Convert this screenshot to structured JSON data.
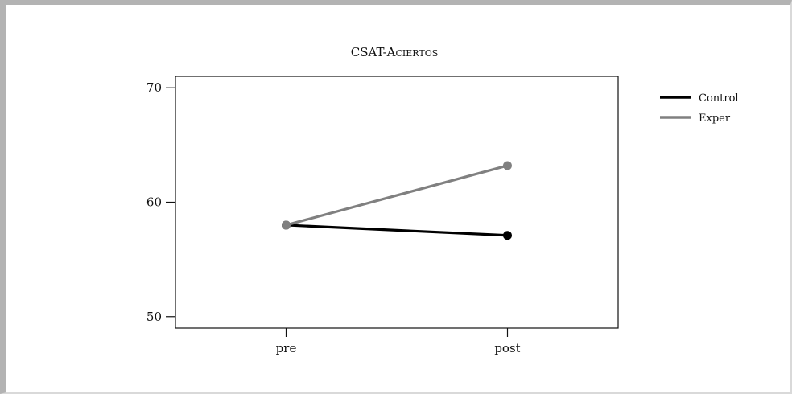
{
  "chart_data": {
    "type": "line",
    "title": "CSAT-Aciertos",
    "categories": [
      "pre",
      "post"
    ],
    "ylim": [
      49,
      71
    ],
    "yticks": [
      50,
      60,
      70
    ],
    "grid": false,
    "legend_position": "top-right",
    "series": [
      {
        "name": "Control",
        "values": [
          58.0,
          57.1
        ],
        "color": "#000000"
      },
      {
        "name": "Exper",
        "values": [
          58.0,
          63.2
        ],
        "color": "#808080"
      }
    ]
  }
}
